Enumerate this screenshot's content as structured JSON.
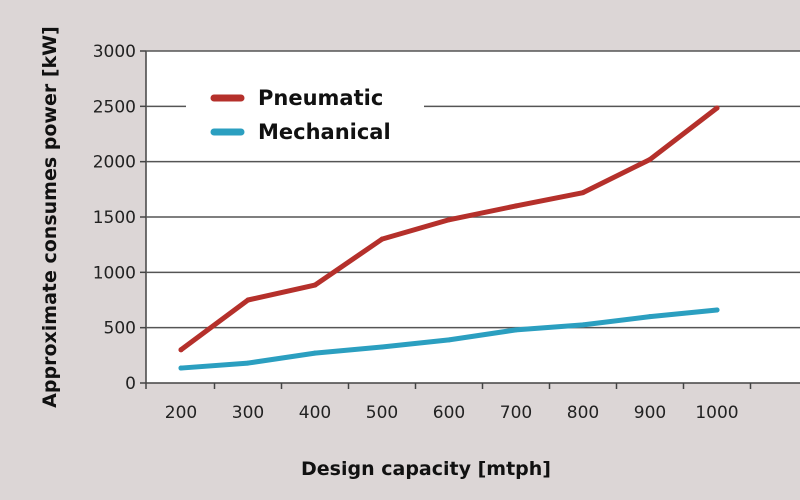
{
  "chart_data": {
    "type": "line",
    "title": "",
    "xlabel": "Design capacity [mtph]",
    "ylabel": "Approximate consumes power [kW]",
    "x": [
      200,
      300,
      400,
      500,
      600,
      700,
      800,
      900,
      1000
    ],
    "x_tick_labels": [
      "200",
      "300",
      "400",
      "500",
      "600",
      "700",
      "800",
      "900",
      "1000"
    ],
    "y_tick_labels": [
      "0",
      "500",
      "1000",
      "1500",
      "2000",
      "2500",
      "3000"
    ],
    "ylim": [
      0,
      3000
    ],
    "grid": "horizontal",
    "legend_position": "top-left",
    "series": [
      {
        "name": "Pneumatic",
        "color": "#b5302b",
        "values": [
          300,
          750,
          885,
          1300,
          1475,
          1600,
          1720,
          2020,
          2485
        ]
      },
      {
        "name": "Mechanical",
        "color": "#2b9fc0",
        "values": [
          135,
          180,
          270,
          325,
          390,
          480,
          525,
          600,
          660
        ]
      }
    ]
  }
}
